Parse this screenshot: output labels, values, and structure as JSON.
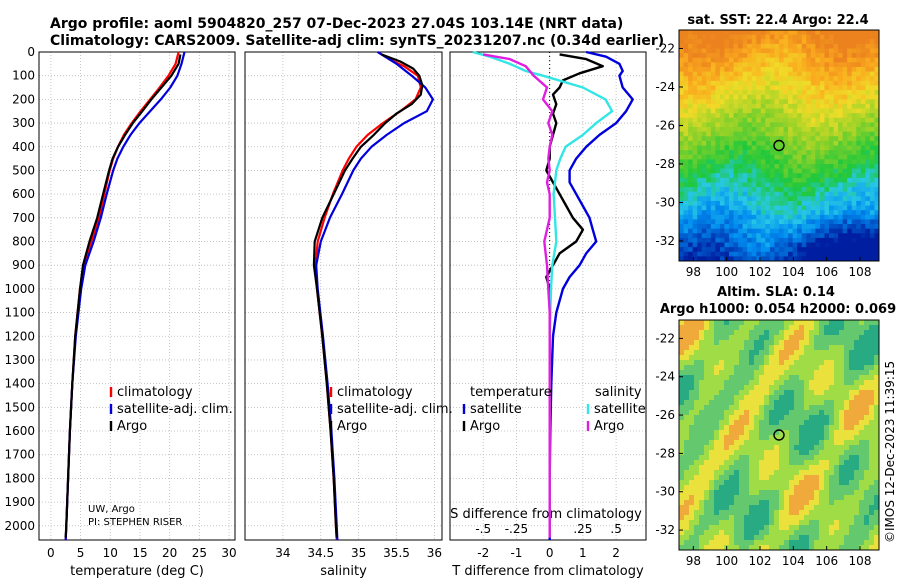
{
  "header": {
    "line1": "Argo profile: aoml 5904820_257 07-Dec-2023 27.04S 103.14E (NRT data)",
    "line2": "Climatology: CARS2009. Satellite-adj clim: synTS_20231207.nc (0.34d earlier)"
  },
  "credit": {
    "line1": "UW, Argo",
    "line2": "PI: STEPHEN RISER"
  },
  "watermark": "©IMOS 12-Dec-2023 11:39:15",
  "colors": {
    "climatology": "#ff0000",
    "satellite": "#0000dd",
    "argo": "#000000",
    "sat_salinity": "#33e6e6",
    "argo_salinity": "#e01ee0"
  },
  "chart_data": [
    {
      "id": "temperature",
      "type": "line",
      "xlabel": "temperature (deg C)",
      "xlim": [
        -2,
        31
      ],
      "ylim": [
        2060,
        0
      ],
      "xticks": [
        0,
        5,
        10,
        15,
        20,
        25,
        30
      ],
      "yticks": [
        0,
        100,
        200,
        300,
        400,
        500,
        600,
        700,
        800,
        900,
        1000,
        1100,
        1200,
        1300,
        1400,
        1500,
        1600,
        1700,
        1800,
        1900,
        2000
      ],
      "legend": [
        "climatology",
        "satellite-adj. clim.",
        "Argo"
      ],
      "series": [
        {
          "name": "climatology",
          "color": "#ff0000",
          "depth": [
            0,
            50,
            100,
            150,
            200,
            250,
            300,
            350,
            400,
            450,
            500,
            600,
            700,
            800,
            900,
            1000,
            1200,
            1400,
            1600,
            1800,
            2000,
            2060
          ],
          "values": [
            21.5,
            21.0,
            19.8,
            18.3,
            16.7,
            15.1,
            13.6,
            12.3,
            11.3,
            10.5,
            9.9,
            9.0,
            8.1,
            6.8,
            5.5,
            4.9,
            4.1,
            3.6,
            3.2,
            2.9,
            2.6,
            2.5
          ]
        },
        {
          "name": "satellite-adj. clim.",
          "color": "#0000dd",
          "depth": [
            0,
            50,
            100,
            150,
            200,
            250,
            300,
            350,
            400,
            450,
            500,
            600,
            700,
            800,
            900,
            1000,
            1200,
            1400,
            1600,
            1800,
            2000,
            2060
          ],
          "values": [
            22.5,
            22.0,
            21.3,
            20.1,
            18.5,
            16.7,
            14.9,
            13.4,
            12.2,
            11.2,
            10.5,
            9.4,
            8.4,
            7.2,
            5.8,
            5.1,
            4.2,
            3.6,
            3.2,
            2.9,
            2.6,
            2.5
          ]
        },
        {
          "name": "Argo",
          "color": "#000000",
          "depth": [
            10,
            50,
            100,
            150,
            200,
            250,
            300,
            350,
            400,
            450,
            500,
            600,
            700,
            800,
            900,
            1000,
            1200,
            1400,
            1600,
            1800,
            2000,
            2050
          ],
          "values": [
            21.8,
            21.5,
            20.3,
            18.6,
            16.9,
            15.4,
            13.8,
            12.5,
            11.3,
            10.4,
            9.8,
            8.8,
            7.8,
            6.5,
            5.4,
            4.9,
            4.1,
            3.6,
            3.2,
            2.9,
            2.6,
            2.5
          ]
        }
      ]
    },
    {
      "id": "salinity",
      "type": "line",
      "xlabel": "salinity",
      "xlim": [
        33.5,
        36.1
      ],
      "ylim": [
        2060,
        0
      ],
      "xticks": [
        34,
        34.5,
        35,
        35.5,
        36
      ],
      "legend": [
        "climatology",
        "satellite-adj. clim.",
        "Argo"
      ],
      "series": [
        {
          "name": "climatology",
          "color": "#ff0000",
          "depth": [
            0,
            30,
            60,
            100,
            150,
            200,
            250,
            300,
            350,
            400,
            450,
            500,
            600,
            700,
            800,
            900,
            1000,
            1200,
            1400,
            1600,
            1800,
            2000,
            2060
          ],
          "values": [
            35.25,
            35.4,
            35.6,
            35.78,
            35.82,
            35.75,
            35.55,
            35.32,
            35.12,
            34.97,
            34.87,
            34.79,
            34.66,
            34.55,
            34.46,
            34.43,
            34.45,
            34.52,
            34.58,
            34.63,
            34.67,
            34.7,
            34.71
          ]
        },
        {
          "name": "satellite-adj. clim.",
          "color": "#0000dd",
          "depth": [
            0,
            20,
            50,
            100,
            150,
            200,
            250,
            300,
            350,
            400,
            450,
            500,
            600,
            700,
            800,
            900,
            1000,
            1200,
            1400,
            1600,
            1800,
            2000,
            2060
          ],
          "values": [
            35.25,
            35.35,
            35.5,
            35.7,
            35.88,
            35.98,
            35.9,
            35.6,
            35.37,
            35.17,
            35.03,
            34.93,
            34.78,
            34.62,
            34.5,
            34.44,
            34.46,
            34.53,
            34.59,
            34.64,
            34.68,
            34.71,
            34.72
          ]
        },
        {
          "name": "Argo",
          "color": "#000000",
          "depth": [
            10,
            40,
            70,
            100,
            140,
            180,
            220,
            260,
            300,
            350,
            400,
            450,
            500,
            600,
            700,
            800,
            900,
            1000,
            1200,
            1400,
            1600,
            1800,
            2000,
            2050
          ],
          "values": [
            35.3,
            35.55,
            35.72,
            35.8,
            35.84,
            35.82,
            35.7,
            35.5,
            35.35,
            35.2,
            35.03,
            34.92,
            34.82,
            34.67,
            34.52,
            34.42,
            34.41,
            34.45,
            34.52,
            34.58,
            34.63,
            34.67,
            34.7,
            34.71
          ]
        }
      ]
    },
    {
      "id": "difference",
      "type": "line",
      "xlabel": "T difference from climatology",
      "xlabel_top": "S difference from climatology",
      "xlim": [
        -3,
        2.9
      ],
      "ylim": [
        2060,
        0
      ],
      "xticks": [
        -2,
        -1,
        0,
        1,
        2
      ],
      "s_ticks": [
        -0.5,
        -0.25,
        0,
        0.25,
        0.5
      ],
      "legend_titles": {
        "temperature": "temperature",
        "salinity": "salinity"
      },
      "legend_left": [
        "satellite",
        "Argo"
      ],
      "legend_right": [
        "satellite",
        "Argo"
      ],
      "series": [
        {
          "name": "temperature satellite",
          "color": "#0000dd",
          "depth": [
            0,
            20,
            50,
            80,
            100,
            150,
            200,
            250,
            300,
            350,
            400,
            450,
            500,
            550,
            600,
            650,
            700,
            750,
            800,
            850,
            900,
            950,
            1000,
            1100,
            1200,
            1400,
            1600,
            1800,
            2000,
            2060
          ],
          "values": [
            1.1,
            1.7,
            2.1,
            2.2,
            2.1,
            2.2,
            2.5,
            2.3,
            2.0,
            1.5,
            1.1,
            0.8,
            0.6,
            0.6,
            0.8,
            1.0,
            1.2,
            1.3,
            1.4,
            1.1,
            0.9,
            0.6,
            0.4,
            0.2,
            0.1,
            0.05,
            0.02,
            0.0,
            0.0,
            0.0
          ]
        },
        {
          "name": "temperature Argo",
          "color": "#000000",
          "depth": [
            10,
            30,
            60,
            90,
            120,
            150,
            180,
            220,
            260,
            300,
            350,
            400,
            450,
            500,
            550,
            600,
            650,
            700,
            750,
            800,
            850,
            900,
            950,
            1000,
            1100,
            1200,
            1400,
            1600,
            1800,
            2000,
            2050
          ],
          "values": [
            0.3,
            1.1,
            1.6,
            0.9,
            0.4,
            0.3,
            0.1,
            0.2,
            0.1,
            0.2,
            0.1,
            0.0,
            0.0,
            -0.1,
            0.1,
            0.3,
            0.5,
            0.7,
            1.0,
            0.8,
            0.3,
            0.1,
            -0.1,
            0.0,
            0.0,
            0.0,
            0.0,
            0.0,
            0.0,
            0.0,
            0.0
          ]
        },
        {
          "name": "salinity satellite",
          "color": "#33e6e6",
          "depth": [
            0,
            20,
            50,
            80,
            100,
            150,
            200,
            250,
            300,
            350,
            400,
            450,
            500,
            550,
            600,
            700,
            800,
            900,
            1000,
            1200,
            1400,
            1600,
            1800,
            2000,
            2050
          ],
          "values": [
            -0.58,
            -0.45,
            -0.3,
            -0.18,
            -0.05,
            0.25,
            0.42,
            0.47,
            0.35,
            0.25,
            0.12,
            0.08,
            0.05,
            0.04,
            0.03,
            0.04,
            0.05,
            0.02,
            0.01,
            0.0,
            0.0,
            0.0,
            0.0,
            0.0,
            0.0
          ]
        },
        {
          "name": "salinity Argo",
          "color": "#e01ee0",
          "depth": [
            10,
            30,
            60,
            100,
            150,
            200,
            250,
            300,
            350,
            400,
            450,
            500,
            550,
            600,
            700,
            800,
            900,
            1000,
            1100,
            1200,
            1400,
            1600,
            1800,
            2000,
            2050
          ],
          "values": [
            -0.5,
            -0.3,
            -0.18,
            -0.12,
            -0.02,
            -0.05,
            0.02,
            -0.01,
            0.02,
            0.0,
            -0.01,
            0.0,
            -0.02,
            0.0,
            0.0,
            -0.04,
            -0.02,
            -0.01,
            0.0,
            0.0,
            0.0,
            0.0,
            0.0,
            0.0,
            0.0
          ]
        }
      ]
    },
    {
      "id": "sst_map",
      "type": "heatmap",
      "title": "sat. SST: 22.4 Argo: 22.4",
      "xlim": [
        97.14,
        109.14
      ],
      "ylim": [
        -33.04,
        -21.04
      ],
      "xticks": [
        98,
        100,
        102,
        104,
        106,
        108
      ],
      "yticks": [
        -22,
        -24,
        -26,
        -28,
        -30,
        -32
      ],
      "marker": {
        "lon": 103.14,
        "lat": -27.04
      }
    },
    {
      "id": "sla_map",
      "type": "heatmap",
      "title": "Altim. SLA: 0.14",
      "subtitle": "Argo h1000: 0.054 h2000: 0.069",
      "xlim": [
        97.14,
        109.14
      ],
      "ylim": [
        -33.04,
        -21.04
      ],
      "xticks": [
        98,
        100,
        102,
        104,
        106,
        108
      ],
      "yticks": [
        -22,
        -24,
        -26,
        -28,
        -30,
        -32
      ],
      "marker": {
        "lon": 103.14,
        "lat": -27.04
      }
    }
  ]
}
